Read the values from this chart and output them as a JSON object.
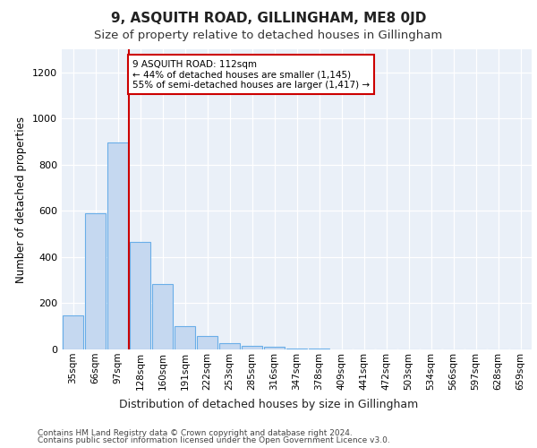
{
  "title": "9, ASQUITH ROAD, GILLINGHAM, ME8 0JD",
  "subtitle": "Size of property relative to detached houses in Gillingham",
  "xlabel": "Distribution of detached houses by size in Gillingham",
  "ylabel": "Number of detached properties",
  "bar_labels": [
    "35sqm",
    "66sqm",
    "97sqm",
    "128sqm",
    "160sqm",
    "191sqm",
    "222sqm",
    "253sqm",
    "285sqm",
    "316sqm",
    "347sqm",
    "378sqm",
    "409sqm",
    "441sqm",
    "472sqm",
    "503sqm",
    "534sqm",
    "566sqm",
    "597sqm",
    "628sqm",
    "659sqm"
  ],
  "bar_heights": [
    148,
    590,
    895,
    465,
    285,
    100,
    60,
    28,
    17,
    10,
    5,
    2,
    1,
    1,
    0,
    0,
    0,
    0,
    0,
    0,
    0
  ],
  "bar_color": "#c5d8f0",
  "bar_edge_color": "#6aaee8",
  "vline_x": 2.5,
  "vline_color": "#cc0000",
  "annotation_text": "9 ASQUITH ROAD: 112sqm\n← 44% of detached houses are smaller (1,145)\n55% of semi-detached houses are larger (1,417) →",
  "annotation_box_facecolor": "#ffffff",
  "annotation_box_edgecolor": "#cc0000",
  "ylim": [
    0,
    1300
  ],
  "yticks": [
    0,
    200,
    400,
    600,
    800,
    1000,
    1200
  ],
  "footer_line1": "Contains HM Land Registry data © Crown copyright and database right 2024.",
  "footer_line2": "Contains public sector information licensed under the Open Government Licence v3.0.",
  "bg_color": "#eaf0f8",
  "title_fontsize": 11,
  "subtitle_fontsize": 9.5
}
